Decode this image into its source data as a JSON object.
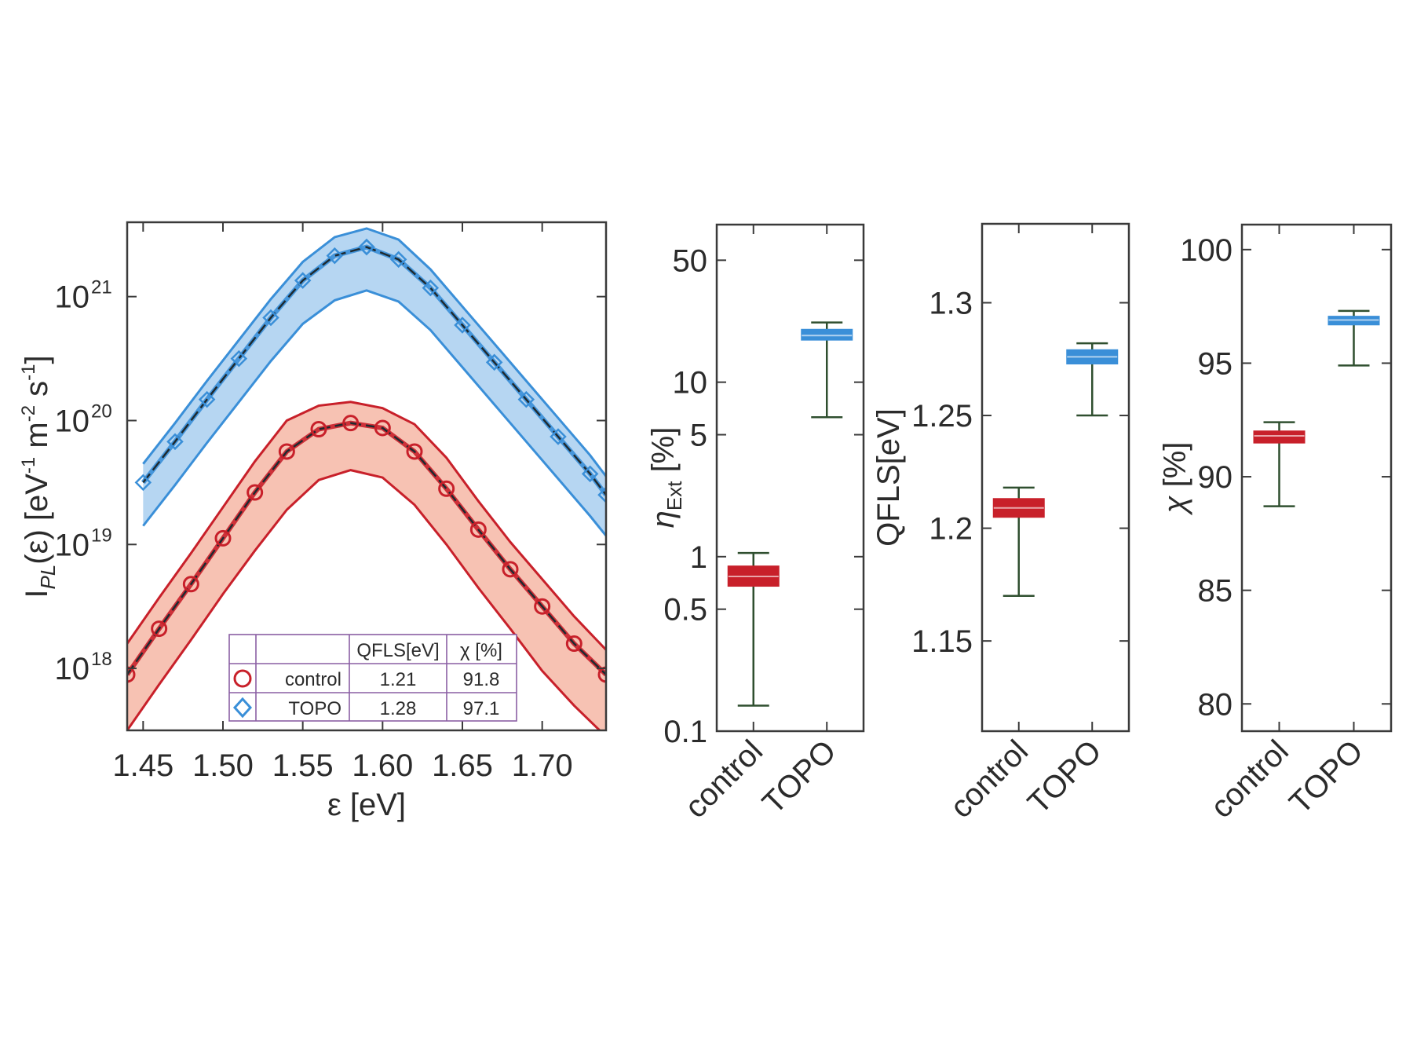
{
  "colors": {
    "control_line": "#c8202a",
    "control_band": "#f6b7a6",
    "control_marker": "#c8202a",
    "topo_line": "#3a8fd8",
    "topo_band": "#a9cff0",
    "topo_marker": "#3a8fd8",
    "fit_line": "#1e2a30",
    "whisker": "#2f4f2f",
    "legend_border": "#8a5fa3"
  },
  "chart_data": [
    {
      "type": "line",
      "xlabel": "ε [eV]",
      "ylabel": "I_PL(ε) [eV⁻¹ m⁻² s⁻¹]",
      "ylabel_parts": {
        "base": "I",
        "sub": "PL",
        "rest": "(ε) [eV",
        "e1": "-1",
        "mid": " m",
        "e2": "-2",
        "tail": " s",
        "e3": "-1",
        "end": "]"
      },
      "xlim": [
        1.44,
        1.74
      ],
      "ylim_log10": [
        17.5,
        21.6
      ],
      "log_y": true,
      "xticks": [
        1.45,
        1.5,
        1.55,
        1.6,
        1.65,
        1.7
      ],
      "xtick_labels": [
        "1.45",
        "1.50",
        "1.55",
        "1.60",
        "1.65",
        "1.70"
      ],
      "yticks_log10": [
        18,
        19,
        20,
        21
      ],
      "ytick_labels": [
        "10",
        "10",
        "10",
        "10"
      ],
      "ytick_exps": [
        "18",
        "19",
        "20",
        "21"
      ],
      "series": [
        {
          "name": "TOPO",
          "marker": "diamond",
          "x": [
            1.45,
            1.47,
            1.49,
            1.51,
            1.53,
            1.55,
            1.57,
            1.59,
            1.61,
            1.63,
            1.65,
            1.67,
            1.69,
            1.71,
            1.73,
            1.74
          ],
          "log10_y": [
            19.5,
            19.83,
            20.17,
            20.5,
            20.83,
            21.13,
            21.33,
            21.4,
            21.3,
            21.07,
            20.77,
            20.47,
            20.17,
            19.87,
            19.57,
            19.4
          ],
          "band_lower_log10": [
            19.15,
            19.48,
            19.82,
            20.15,
            20.48,
            20.78,
            20.97,
            21.05,
            20.96,
            20.73,
            20.43,
            20.13,
            19.83,
            19.53,
            19.23,
            19.07
          ],
          "band_upper_log10": [
            19.65,
            19.98,
            20.32,
            20.65,
            20.98,
            21.28,
            21.48,
            21.55,
            21.46,
            21.22,
            20.92,
            20.62,
            20.32,
            20.02,
            19.72,
            19.55
          ]
        },
        {
          "name": "control",
          "marker": "circle",
          "x": [
            1.44,
            1.46,
            1.48,
            1.5,
            1.52,
            1.54,
            1.56,
            1.58,
            1.6,
            1.62,
            1.64,
            1.66,
            1.68,
            1.7,
            1.72,
            1.74
          ],
          "log10_y": [
            17.95,
            18.32,
            18.68,
            19.05,
            19.42,
            19.75,
            19.93,
            19.98,
            19.94,
            19.75,
            19.45,
            19.12,
            18.8,
            18.5,
            18.2,
            17.95
          ],
          "band_lower_log10": [
            17.5,
            17.87,
            18.23,
            18.6,
            18.95,
            19.28,
            19.52,
            19.6,
            19.54,
            19.32,
            19.0,
            18.65,
            18.32,
            17.98,
            17.7,
            17.45
          ],
          "band_upper_log10": [
            18.2,
            18.57,
            18.93,
            19.3,
            19.67,
            20.0,
            20.12,
            20.15,
            20.1,
            19.97,
            19.7,
            19.35,
            19.02,
            18.72,
            18.42,
            18.15
          ]
        }
      ],
      "legend": {
        "headers": [
          "",
          "",
          "QFLS[eV]",
          "χ [%]"
        ],
        "rows": [
          {
            "label": "control",
            "qfls": "1.21",
            "chi": "91.8",
            "marker": "circle"
          },
          {
            "label": "TOPO",
            "qfls": "1.28",
            "chi": "97.1",
            "marker": "diamond"
          }
        ],
        "placement": "bottom-center"
      }
    },
    {
      "type": "box",
      "ylabel_parts": {
        "sym": "η",
        "sub": "Ext",
        "rest": " [%]"
      },
      "log_y": true,
      "ylim": [
        0.1,
        80
      ],
      "yticks": [
        0.1,
        0.5,
        1,
        5,
        10,
        50
      ],
      "ytick_labels": [
        "0.1",
        "0.5",
        "1",
        "5",
        "10",
        "50"
      ],
      "categories": [
        "control",
        "TOPO"
      ],
      "boxes": [
        {
          "category": "control",
          "whisker_low": 0.14,
          "q1": 0.68,
          "median": 0.77,
          "q3": 0.88,
          "whisker_high": 1.05
        },
        {
          "category": "TOPO",
          "whisker_low": 6.3,
          "q1": 17.5,
          "median": 18.5,
          "q3": 20.0,
          "whisker_high": 22.0
        }
      ]
    },
    {
      "type": "box",
      "ylabel": "QFLS[eV]",
      "log_y": false,
      "ylim": [
        1.11,
        1.335
      ],
      "yticks": [
        1.15,
        1.2,
        1.25,
        1.3
      ],
      "ytick_labels": [
        "1.15",
        "1.2",
        "1.25",
        "1.3"
      ],
      "categories": [
        "control",
        "TOPO"
      ],
      "boxes": [
        {
          "category": "control",
          "whisker_low": 1.17,
          "q1": 1.205,
          "median": 1.209,
          "q3": 1.213,
          "whisker_high": 1.218
        },
        {
          "category": "TOPO",
          "whisker_low": 1.25,
          "q1": 1.273,
          "median": 1.276,
          "q3": 1.279,
          "whisker_high": 1.282
        }
      ]
    },
    {
      "type": "box",
      "ylabel_parts": {
        "sym": "χ",
        "rest": " [%]"
      },
      "log_y": false,
      "ylim": [
        78.8,
        101.1
      ],
      "yticks": [
        80,
        85,
        90,
        95,
        100
      ],
      "ytick_labels": [
        "80",
        "85",
        "90",
        "95",
        "100"
      ],
      "categories": [
        "control",
        "TOPO"
      ],
      "boxes": [
        {
          "category": "control",
          "whisker_low": 88.7,
          "q1": 91.5,
          "median": 91.8,
          "q3": 92.0,
          "whisker_high": 92.4
        },
        {
          "category": "TOPO",
          "whisker_low": 94.9,
          "q1": 96.7,
          "median": 96.9,
          "q3": 97.05,
          "whisker_high": 97.3
        }
      ]
    }
  ]
}
